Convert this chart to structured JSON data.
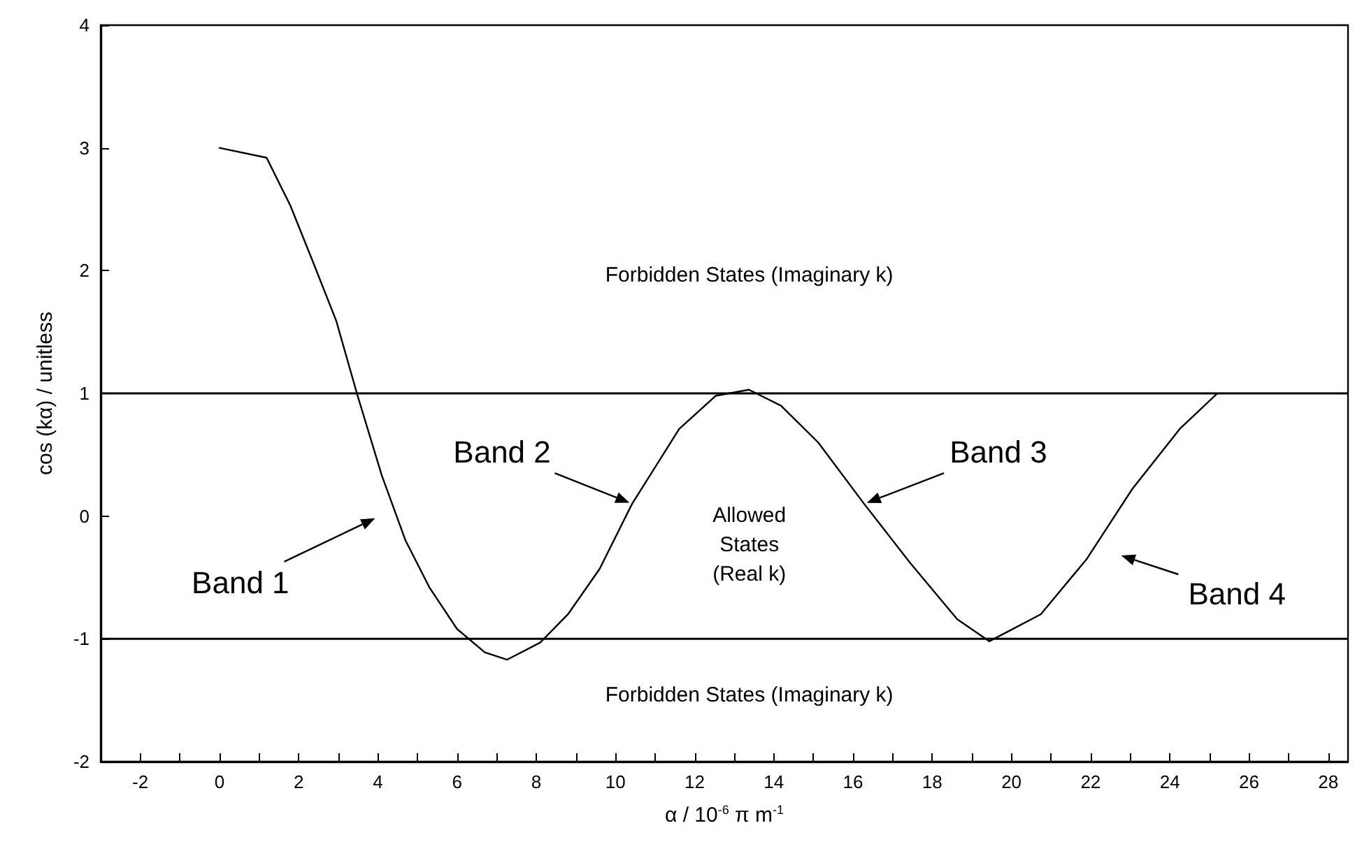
{
  "chart_data": {
    "type": "line",
    "xlabel": "α / 10$^{-6}$ π m$^{-1}$",
    "ylabel": "cos (kα) / unitless",
    "xlim": [
      -3,
      28.5
    ],
    "ylim": [
      -2,
      4
    ],
    "xticks": [
      -2,
      {
        "value": -1,
        "label": null
      },
      0,
      {
        "value": 1,
        "label": null
      },
      2,
      {
        "value": 3,
        "label": null
      },
      4,
      {
        "value": 5,
        "label": null
      },
      6,
      {
        "value": 7,
        "label": null
      },
      8,
      {
        "value": 9,
        "label": null
      },
      10,
      {
        "value": 11,
        "label": null
      },
      12,
      {
        "value": 13,
        "label": null
      },
      14,
      {
        "value": 15,
        "label": null
      },
      16,
      {
        "value": 17,
        "label": null
      },
      18,
      {
        "value": 19,
        "label": null
      },
      20,
      {
        "value": 21,
        "label": null
      },
      22,
      {
        "value": 23,
        "label": null
      },
      24,
      {
        "value": 25,
        "label": null
      },
      26,
      {
        "value": 27,
        "label": null
      },
      28
    ],
    "yticks": [
      -2,
      -1,
      0,
      1,
      2,
      3,
      4
    ],
    "series": [
      {
        "color": "#000000",
        "x": [
          0,
          1.19,
          1.79,
          2.35,
          2.95,
          3.47,
          4.1,
          4.7,
          5.3,
          6.0,
          6.7,
          7.26,
          8.1,
          8.8,
          9.6,
          10.42,
          11.61,
          12.53,
          13.37,
          14.18,
          15.12,
          16.28,
          17.44,
          18.63,
          19.44,
          20.74,
          21.9,
          23.05,
          24.25,
          25.2
        ],
        "values": [
          3.0,
          2.92,
          2.53,
          2.08,
          1.59,
          1.0,
          0.33,
          -0.2,
          -0.58,
          -0.92,
          -1.11,
          -1.17,
          -1.03,
          -0.8,
          -0.43,
          0.1,
          0.71,
          0.98,
          1.03,
          0.9,
          0.6,
          0.1,
          -0.38,
          -0.84,
          -1.02,
          -0.8,
          -0.35,
          0.22,
          0.71,
          1.0
        ]
      }
    ],
    "ref_lines": [
      {
        "axis": "y",
        "value": 1,
        "color": "#000000"
      },
      {
        "axis": "y",
        "value": -1,
        "color": "#000000"
      }
    ],
    "annotations": [
      "Forbidden States (Imaginary k)",
      "Allowed\nStates\n(Real k)",
      "Forbidden States (Imaginary k)",
      "Band 1",
      "Band 4",
      {
        "text": "Band 2",
        "x": 10.42,
        "y": 0.1
      },
      {
        "text": "Band 3",
        "x": 16.28,
        "y": 0.1
      }
    ],
    "marker": "none",
    "line_style": "solid",
    "grid": false
  }
}
